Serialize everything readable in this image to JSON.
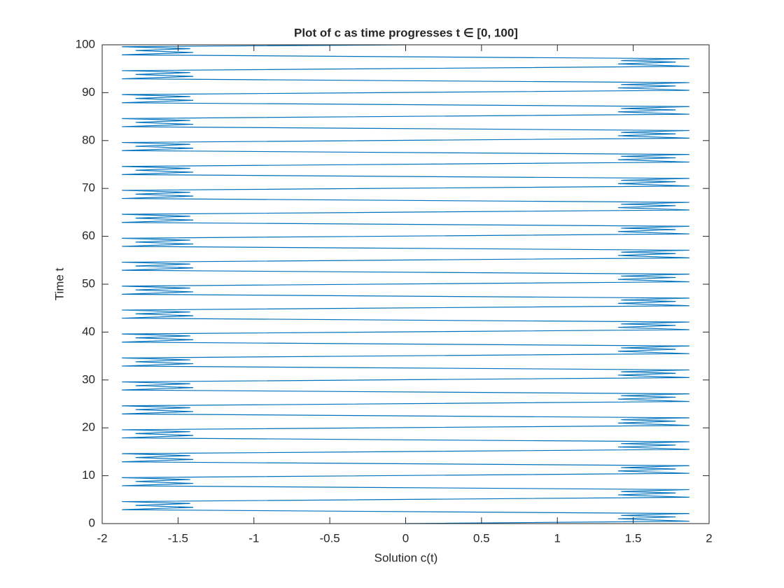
{
  "chart_data": {
    "type": "line",
    "title": "Plot of c as time progresses t ∈ [0, 100]",
    "xlabel": "Solution c(t)",
    "ylabel": "Time t",
    "color": "#0072bd",
    "xlim": [
      -2,
      2
    ],
    "xticks": [
      -2,
      -1.5,
      -1,
      -0.5,
      0,
      0.5,
      1,
      1.5,
      2
    ],
    "ylim": [
      0,
      100
    ],
    "yticks": [
      0,
      10,
      20,
      30,
      40,
      50,
      60,
      70,
      80,
      90,
      100
    ],
    "x": [
      0,
      1.87,
      1.4,
      1.78,
      1.42,
      1.87,
      -1.87,
      -1.4,
      -1.78,
      -1.42,
      -1.87,
      1.87,
      1.4,
      1.78,
      1.42,
      1.87,
      -1.87,
      -1.4,
      -1.78,
      -1.42,
      -1.87,
      1.87,
      1.4,
      1.78,
      1.42,
      1.87,
      -1.87,
      -1.4,
      -1.78,
      -1.42,
      -1.87,
      1.87,
      1.4,
      1.78,
      1.42,
      1.87,
      -1.87,
      -1.4,
      -1.78,
      -1.42,
      -1.87,
      1.87,
      1.4,
      1.78,
      1.42,
      1.87,
      -1.87,
      -1.4,
      -1.78,
      -1.42,
      -1.87,
      1.87,
      1.4,
      1.78,
      1.42,
      1.87,
      -1.87,
      -1.4,
      -1.78,
      -1.42,
      -1.87,
      1.87,
      1.4,
      1.78,
      1.42,
      1.87,
      -1.87,
      -1.4,
      -1.78,
      -1.42,
      -1.87,
      1.87,
      1.4,
      1.78,
      1.42,
      1.87,
      -1.87,
      -1.4,
      -1.78,
      -1.42,
      -1.87,
      1.87,
      1.4,
      1.78,
      1.42,
      1.87,
      -1.87,
      -1.4,
      -1.78,
      -1.42,
      -1.87,
      1.87,
      1.4,
      1.78,
      1.42,
      1.87,
      -1.87,
      -1.4,
      -1.78,
      -1.42,
      -1.87,
      1.87,
      1.4,
      1.78,
      1.42,
      1.87,
      -1.87,
      -1.4,
      -1.78,
      -1.42,
      -1.87,
      1.87,
      1.4,
      1.78,
      1.42,
      1.87,
      -1.87,
      -1.4,
      -1.78,
      -1.42,
      -1.87,
      1.87,
      1.4,
      1.78,
      1.42,
      1.87,
      -1.87,
      -1.4,
      -1.78,
      -1.42,
      -1.87,
      1.87,
      1.4,
      1.78,
      1.42,
      1.87,
      -1.87,
      -1.4,
      -1.78,
      -1.42,
      -1.87,
      1.87,
      1.4,
      1.78,
      1.42,
      1.87,
      -1.87,
      -1.4,
      -1.78,
      -1.42,
      -1.87,
      1.87,
      1.4,
      1.78,
      1.42,
      1.87,
      -1.87,
      -1.4,
      -1.78,
      -1.42,
      -1.87,
      1.87,
      1.4,
      1.78,
      1.42,
      1.87,
      -1.87,
      -1.4,
      -1.78,
      -1.42,
      -1.87,
      1.87,
      1.4,
      1.78,
      1.42,
      1.87,
      -1.87,
      -1.4,
      -1.78,
      -1.42,
      -1.87,
      1.87,
      1.4,
      1.78,
      1.42,
      1.87,
      -1.87,
      -1.4,
      -1.78,
      -1.42,
      -1.87,
      1.87,
      1.4,
      1.78,
      1.42,
      1.87,
      -1.87,
      -1.4,
      -1.78,
      -1.42,
      -1.87,
      0
    ],
    "values": [
      0,
      0.5,
      1,
      1.4,
      1.7,
      2.1,
      2.9,
      3.4,
      3.8,
      4.2,
      4.6,
      5.5,
      6,
      6.4,
      6.7,
      7.1,
      7.9,
      8.4,
      8.8,
      9.2,
      9.6,
      10.5,
      11,
      11.4,
      11.7,
      12.1,
      12.9,
      13.4,
      13.8,
      14.2,
      14.6,
      15.5,
      16,
      16.4,
      16.7,
      17.1,
      17.9,
      18.4,
      18.8,
      19.2,
      19.6,
      20.5,
      21,
      21.4,
      21.7,
      22.1,
      22.9,
      23.4,
      23.8,
      24.2,
      24.6,
      25.5,
      26,
      26.4,
      26.7,
      27.1,
      27.9,
      28.4,
      28.8,
      29.2,
      29.6,
      30.5,
      31,
      31.4,
      31.7,
      32.1,
      32.9,
      33.4,
      33.8,
      34.2,
      34.6,
      35.5,
      36,
      36.4,
      36.7,
      37.1,
      37.9,
      38.4,
      38.8,
      39.2,
      39.6,
      40.5,
      41,
      41.4,
      41.7,
      42.1,
      42.9,
      43.4,
      43.8,
      44.2,
      44.6,
      45.5,
      46,
      46.4,
      46.7,
      47.1,
      47.9,
      48.4,
      48.8,
      49.2,
      49.6,
      50.5,
      51,
      51.4,
      51.7,
      52.1,
      52.9,
      53.4,
      53.8,
      54.2,
      54.6,
      55.5,
      56,
      56.4,
      56.7,
      57.1,
      57.9,
      58.4,
      58.8,
      59.2,
      59.6,
      60.5,
      61,
      61.4,
      61.7,
      62.1,
      62.9,
      63.4,
      63.8,
      64.2,
      64.6,
      65.5,
      66,
      66.4,
      66.7,
      67.1,
      67.9,
      68.4,
      68.8,
      69.2,
      69.6,
      70.5,
      71,
      71.4,
      71.7,
      72.1,
      72.9,
      73.4,
      73.8,
      74.2,
      74.6,
      75.5,
      76,
      76.4,
      76.7,
      77.1,
      77.9,
      78.4,
      78.8,
      79.2,
      79.6,
      80.5,
      81,
      81.4,
      81.7,
      82.1,
      82.9,
      83.4,
      83.8,
      84.2,
      84.6,
      85.5,
      86,
      86.4,
      86.7,
      87.1,
      87.9,
      88.4,
      88.8,
      89.2,
      89.6,
      90.5,
      91,
      91.4,
      91.7,
      92.1,
      92.9,
      93.4,
      93.8,
      94.2,
      94.6,
      95.5,
      96,
      96.4,
      96.7,
      97.1,
      97.9,
      98.4,
      98.8,
      99.2,
      99.6,
      100
    ]
  }
}
